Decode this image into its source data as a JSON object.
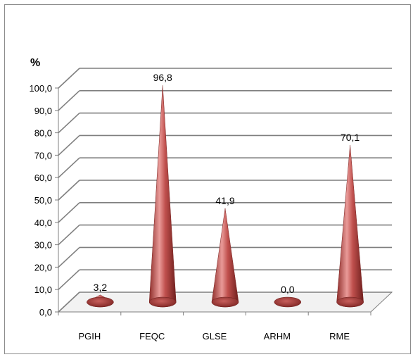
{
  "chart_data": {
    "type": "bar",
    "subtype": "3d-cone",
    "ylabel": "%",
    "categories": [
      "PGIH",
      "FEQC",
      "GLSE",
      "ARHM",
      "RME"
    ],
    "values": [
      3.2,
      96.8,
      41.9,
      0.0,
      70.1
    ],
    "data_labels": [
      "3,2",
      "96,8",
      "41,9",
      "0,0",
      "70,1"
    ],
    "ylim": [
      0,
      100
    ],
    "yticks": [
      "0,0",
      "10,0",
      "20,0",
      "30,0",
      "40,0",
      "50,0",
      "60,0",
      "70,0",
      "80,0",
      "90,0",
      "100,0"
    ],
    "grid": true,
    "legend": "none",
    "colors": {
      "cone": "#c0504d",
      "cone_light": "#e99a98",
      "cone_dark": "#7a2220",
      "grid": "#7f7f7f"
    }
  }
}
